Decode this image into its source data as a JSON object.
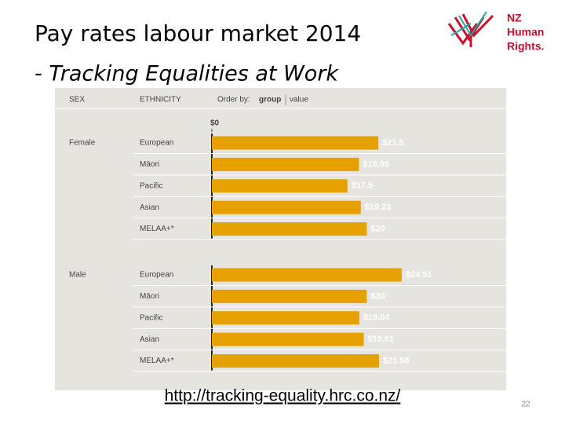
{
  "slide": {
    "title": "Pay rates labour market 2014",
    "subtitle": "- Tracking Equalities at Work",
    "logo": [
      "NZ",
      "Human",
      "Rights."
    ],
    "url": "http://tracking-equality.hrc.co.nz/",
    "page_number": "22"
  },
  "chart_data": {
    "type": "bar",
    "orientation": "horizontal",
    "column_headers": [
      "SEX",
      "ETHNICITY"
    ],
    "order_by": {
      "label": "Order by:",
      "options": [
        "group",
        "value"
      ]
    },
    "color": "#e6a000",
    "xlim": [
      0,
      38
    ],
    "xticks": [
      {
        "value": 0,
        "label": "$0"
      }
    ],
    "groups": [
      {
        "name": "Female",
        "categories": [
          "European",
          "Māori",
          "Pacific",
          "Asian",
          "MELAA+*"
        ],
        "values": [
          21.5,
          18.99,
          17.5,
          19.23,
          20
        ],
        "value_labels": [
          "$21.5",
          "$18.99",
          "$17.5",
          "$19.23",
          "$20"
        ]
      },
      {
        "name": "Male",
        "categories": [
          "European",
          "Māori",
          "Pacific",
          "Asian",
          "MELAA+*"
        ],
        "values": [
          24.51,
          20,
          19.04,
          19.61,
          21.58
        ],
        "value_labels": [
          "$24.51",
          "$20",
          "$19.04",
          "$19.61",
          "$21.58"
        ]
      }
    ]
  }
}
